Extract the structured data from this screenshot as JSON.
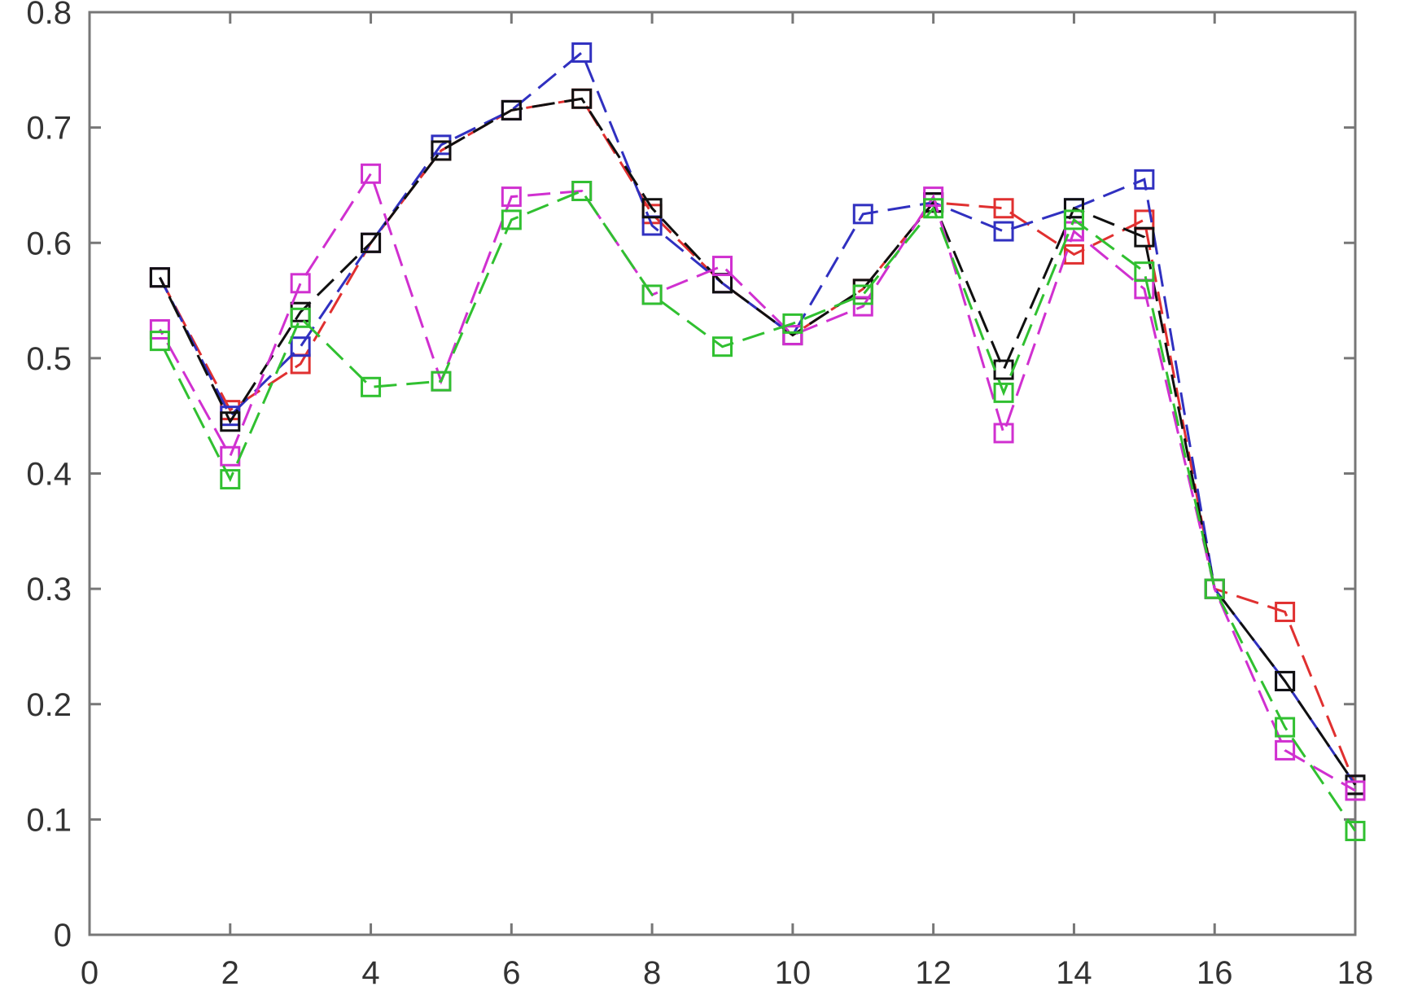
{
  "chart_data": {
    "type": "line",
    "title": "",
    "xlabel": "",
    "ylabel": "",
    "xlim": [
      0,
      18
    ],
    "ylim": [
      0,
      0.8
    ],
    "xticks": [
      "0",
      "2",
      "4",
      "6",
      "8",
      "10",
      "12",
      "14",
      "16",
      "18"
    ],
    "xtick_values": [
      0,
      2,
      4,
      6,
      8,
      10,
      12,
      14,
      16,
      18
    ],
    "yticks": [
      "0",
      "0.1",
      "0.2",
      "0.3",
      "0.4",
      "0.5",
      "0.6",
      "0.7",
      "0.8"
    ],
    "ytick_values": [
      0,
      0.1,
      0.2,
      0.3,
      0.4,
      0.5,
      0.6,
      0.7,
      0.8
    ],
    "grid": false,
    "marker": "square",
    "line_style": "dashed",
    "x": [
      1,
      2,
      3,
      4,
      5,
      6,
      7,
      8,
      9,
      10,
      11,
      12,
      13,
      14,
      15,
      16,
      17,
      18
    ],
    "series": [
      {
        "color": "#e03030",
        "values": [
          0.57,
          0.455,
          0.495,
          0.6,
          0.68,
          0.715,
          0.725,
          0.625,
          0.565,
          0.52,
          0.56,
          0.635,
          0.63,
          0.59,
          0.62,
          0.3,
          0.28,
          0.13
        ]
      },
      {
        "color": "#3030c0",
        "values": [
          0.57,
          0.45,
          0.51,
          0.6,
          0.685,
          0.715,
          0.765,
          0.615,
          0.565,
          0.52,
          0.625,
          0.635,
          0.61,
          0.63,
          0.655,
          0.3,
          0.22,
          0.13
        ]
      },
      {
        "color": "#101010",
        "values": [
          0.57,
          0.445,
          0.54,
          0.6,
          0.68,
          0.715,
          0.725,
          0.63,
          0.565,
          0.52,
          0.56,
          0.635,
          0.49,
          0.63,
          0.605,
          0.3,
          0.22,
          0.13
        ]
      },
      {
        "color": "#d030d0",
        "values": [
          0.525,
          0.415,
          0.565,
          0.66,
          0.48,
          0.64,
          0.645,
          0.555,
          0.58,
          0.52,
          0.545,
          0.64,
          0.435,
          0.61,
          0.56,
          0.3,
          0.16,
          0.125
        ]
      },
      {
        "color": "#30c030",
        "values": [
          0.515,
          0.395,
          0.535,
          0.475,
          0.48,
          0.62,
          0.645,
          0.555,
          0.51,
          0.53,
          0.555,
          0.63,
          0.47,
          0.62,
          0.575,
          0.3,
          0.18,
          0.09
        ]
      }
    ]
  }
}
